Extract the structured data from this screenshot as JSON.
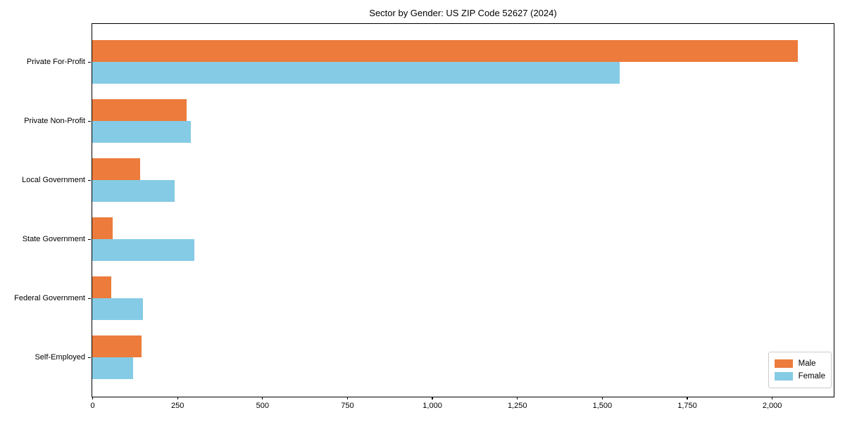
{
  "title": "Sector by Gender: US ZIP Code 52627 (2024)",
  "chart_data": {
    "type": "bar",
    "orientation": "horizontal",
    "title": "Sector by Gender: US ZIP Code 52627 (2024)",
    "xlabel": "",
    "ylabel": "",
    "grid": false,
    "legend_position": "lower right",
    "categories": [
      "Private For-Profit",
      "Private Non-Profit",
      "Local Government",
      "State Government",
      "Federal Government",
      "Self-Employed"
    ],
    "series": [
      {
        "name": "Male",
        "color": "#ec7b3c",
        "values": [
          2076,
          278,
          140,
          61,
          56,
          145
        ]
      },
      {
        "name": "Female",
        "color": "#85cbe5",
        "values": [
          1553,
          291,
          243,
          300,
          150,
          121
        ]
      }
    ],
    "xlim": [
      0,
      2180
    ],
    "xticks": [
      0,
      250,
      500,
      750,
      1000,
      1250,
      1500,
      1750,
      2000
    ],
    "xtick_labels": [
      "0",
      "250",
      "500",
      "750",
      "1,000",
      "1,250",
      "1,500",
      "1,750",
      "2,000"
    ]
  }
}
